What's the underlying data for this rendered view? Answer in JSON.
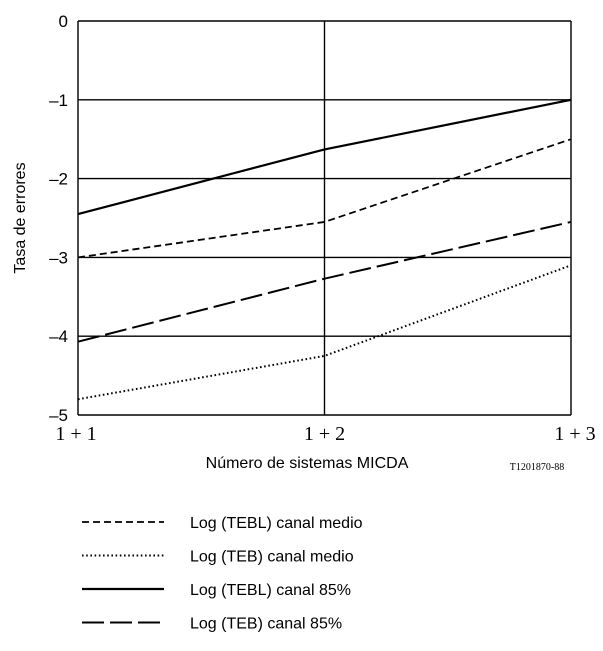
{
  "chart_data": {
    "type": "line",
    "categories": [
      "1 + 1",
      "1 + 2",
      "1 + 3"
    ],
    "ylabel": "Tasa de errores",
    "xlabel": "Número de sistemas MICDA",
    "ylim": [
      -5,
      0
    ],
    "yticks": [
      0,
      -1,
      -2,
      -3,
      -4,
      -5
    ],
    "yticks_labels": [
      "0",
      "–1",
      "–2",
      "–3",
      "–4",
      "–5"
    ],
    "grid": true,
    "legend_position": "bottom",
    "reference_code": "T1201870-88",
    "series": [
      {
        "name": "Log (TEBL) canal medio",
        "style": "short-dash",
        "values": [
          -3.0,
          -2.55,
          -1.5
        ]
      },
      {
        "name": "Log (TEB) canal medio",
        "style": "dotted",
        "values": [
          -4.8,
          -4.25,
          -3.1
        ]
      },
      {
        "name": "Log (TEBL) canal 85%",
        "style": "solid",
        "values": [
          -2.45,
          -1.63,
          -1.0
        ]
      },
      {
        "name": "Log (TEB) canal 85%",
        "style": "long-dash",
        "values": [
          -4.07,
          -3.27,
          -2.55
        ]
      }
    ]
  }
}
